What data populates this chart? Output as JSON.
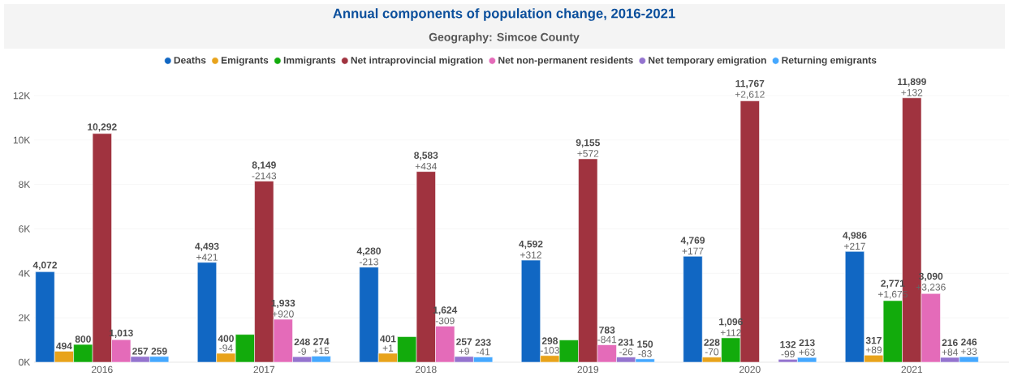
{
  "chart_data": {
    "type": "bar",
    "title": "Annual components of population change, 2016-2021",
    "subtitle": "Geography: Simcoe County",
    "categories": [
      "2016",
      "2017",
      "2018",
      "2019",
      "2020",
      "2021"
    ],
    "series": [
      {
        "name": "Deaths",
        "color": "#1167c3",
        "values": [
          4072,
          4493,
          4280,
          4592,
          4769,
          4986
        ],
        "value_labels": [
          "4,072",
          "4,493",
          "4,280",
          "4,592",
          "4,769",
          "4,986"
        ]
      },
      {
        "name": "Emigrants",
        "color": "#e8a31b",
        "values": [
          494,
          400,
          401,
          298,
          228,
          317
        ],
        "value_labels": [
          "494",
          "400",
          "401",
          "298",
          "228",
          "317"
        ]
      },
      {
        "name": "Immigrants",
        "color": "#12ab0c",
        "values": [
          800,
          1250,
          1150,
          1000,
          1096,
          2771
        ],
        "value_labels": [
          "800",
          null,
          null,
          null,
          "1,096",
          "2,771"
        ]
      },
      {
        "name": "Net intraprovincial migration",
        "color": "#a0333f",
        "values": [
          10292,
          8149,
          8583,
          9155,
          11767,
          11899
        ],
        "value_labels": [
          "10,292",
          "8,149",
          "8,583",
          "9,155",
          "11,767",
          "11,899"
        ]
      },
      {
        "name": "Net non-permanent residents",
        "color": "#e46bb9",
        "values": [
          1013,
          1933,
          1624,
          783,
          null,
          3090
        ],
        "value_labels": [
          "1,013",
          "1,933",
          "1,624",
          "783",
          null,
          "3,090"
        ]
      },
      {
        "name": "Net temporary emigration",
        "color": "#9474cf",
        "values": [
          257,
          248,
          257,
          231,
          132,
          216
        ],
        "value_labels": [
          "257",
          "248",
          "257",
          "231",
          "132",
          "216"
        ]
      },
      {
        "name": "Returning emigrants",
        "color": "#45a8ff",
        "values": [
          259,
          274,
          233,
          150,
          213,
          246
        ],
        "value_labels": [
          "259",
          "274",
          "233",
          "150",
          "213",
          "246"
        ]
      }
    ],
    "annotations": [
      "+421",
      "-94",
      "-2143",
      "+920",
      "-9",
      "+15",
      "-213",
      "+1",
      "+434",
      "-309",
      "+9",
      "-41",
      "+312",
      "-103",
      "+572",
      "-841",
      "-26",
      "-83",
      "+177",
      "-70",
      "+112",
      "+2,612",
      "-99",
      "+63",
      "+217",
      "+89",
      "+1,675",
      "+132",
      "+3,236",
      "+84",
      "+33"
    ],
    "ylim": [
      0,
      12000
    ],
    "yticks": [
      {
        "value": 0,
        "label": "0K"
      },
      {
        "value": 2000,
        "label": "2K"
      },
      {
        "value": 4000,
        "label": "4K"
      },
      {
        "value": 6000,
        "label": "6K"
      },
      {
        "value": 8000,
        "label": "8K"
      },
      {
        "value": 10000,
        "label": "10K"
      },
      {
        "value": 12000,
        "label": "12K"
      }
    ],
    "grid": "y",
    "legend": "top"
  }
}
